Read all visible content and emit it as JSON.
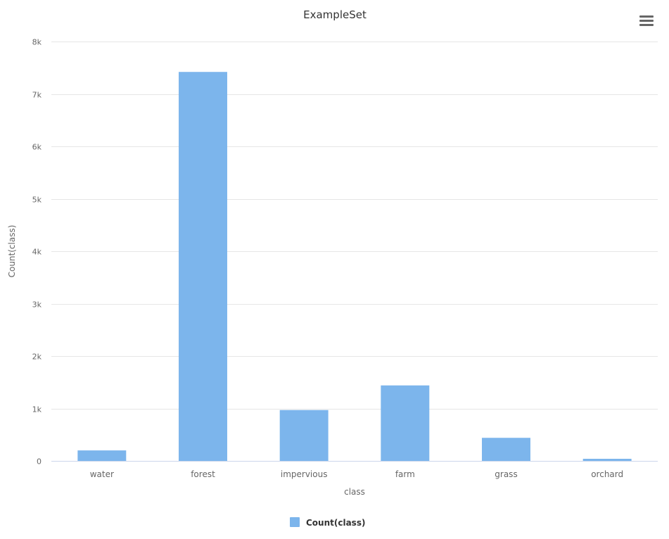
{
  "menu": {
    "icon": "hamburger-icon"
  },
  "colors": {
    "bar": "#7cb5ec",
    "grid": "#e6e6e6",
    "axis_line": "#ccd6eb",
    "text": "#666666",
    "title": "#333333"
  },
  "chart_data": {
    "type": "bar",
    "title": "ExampleSet",
    "xlabel": "class",
    "ylabel": "Count(class)",
    "categories": [
      "water",
      "forest",
      "impervious",
      "farm",
      "grass",
      "orchard"
    ],
    "series": [
      {
        "name": "Count(class)",
        "values": [
          200,
          7420,
          970,
          1440,
          440,
          40
        ]
      }
    ],
    "ylim": [
      0,
      8000
    ],
    "yticks": [
      0,
      1000,
      2000,
      3000,
      4000,
      5000,
      6000,
      7000,
      8000
    ],
    "ytick_labels": [
      "0",
      "1k",
      "2k",
      "3k",
      "4k",
      "5k",
      "6k",
      "7k",
      "8k"
    ],
    "grid": true,
    "legend": "bottom-center"
  }
}
